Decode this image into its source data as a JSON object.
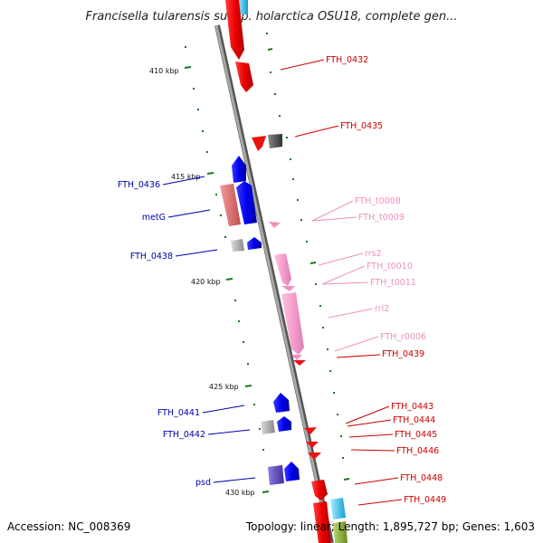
{
  "title": "Francisella tularensis subsp. holarctica OSU18, complete gen...",
  "footer": {
    "accession": "Accession: NC_008369",
    "summary": "Topology: linear; Length: 1,895,727 bp; Genes: 1,603"
  },
  "kbp_labels": [
    "410 kbp",
    "415 kbp",
    "420 kbp",
    "425 kbp",
    "430 kbp"
  ],
  "genes_right": [
    {
      "name": "FTH_0432",
      "color": "#cc0000"
    },
    {
      "name": "FTH_0435",
      "color": "#cc0000"
    },
    {
      "name": "FTH_t0008",
      "color": "#f08fc0"
    },
    {
      "name": "FTH_t0009",
      "color": "#f08fc0"
    },
    {
      "name": "rrs2",
      "color": "#f08fc0"
    },
    {
      "name": "FTH_t0010",
      "color": "#f08fc0"
    },
    {
      "name": "FTH_t0011",
      "color": "#f08fc0"
    },
    {
      "name": "rrl2",
      "color": "#f08fc0"
    },
    {
      "name": "FTH_r0006",
      "color": "#f08fc0"
    },
    {
      "name": "FTH_0439",
      "color": "#cc0000"
    },
    {
      "name": "FTH_0443",
      "color": "#cc0000"
    },
    {
      "name": "FTH_0444",
      "color": "#cc0000"
    },
    {
      "name": "FTH_0445",
      "color": "#cc0000"
    },
    {
      "name": "FTH_0446",
      "color": "#cc0000"
    },
    {
      "name": "FTH_0448",
      "color": "#cc0000"
    },
    {
      "name": "FTH_0449",
      "color": "#cc0000"
    }
  ],
  "genes_left": [
    {
      "name": "FTH_0436",
      "color": "#0000aa"
    },
    {
      "name": "metG",
      "color": "#0000aa"
    },
    {
      "name": "FTH_0438",
      "color": "#0000aa"
    },
    {
      "name": "FTH_0441",
      "color": "#0000aa"
    },
    {
      "name": "FTH_0442",
      "color": "#0000aa"
    },
    {
      "name": "psd",
      "color": "#0000aa"
    }
  ],
  "colors": {
    "backbone": "#8a8a8a",
    "tick": "#1a7a1a",
    "forward_cds": "#ee1111",
    "reverse_cds": "#1111ee",
    "rna": "#f5a0cc",
    "pseudo": "#999999"
  }
}
